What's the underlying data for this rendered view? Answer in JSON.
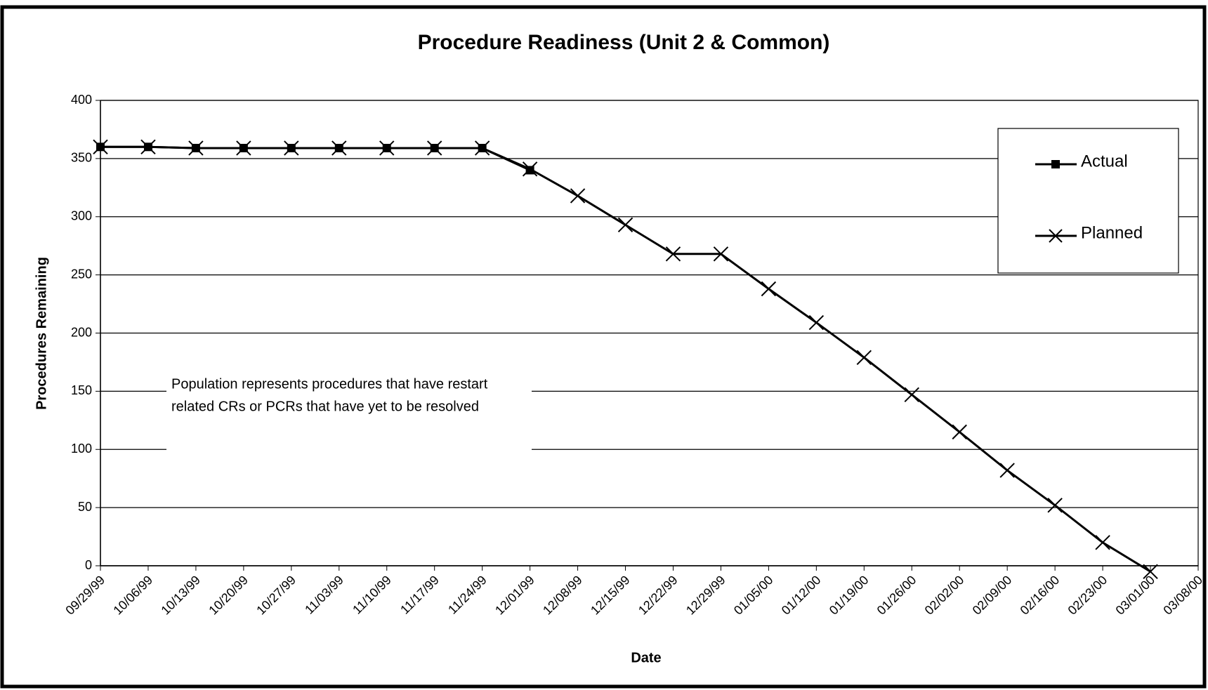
{
  "chart_data": {
    "type": "line",
    "title": "Procedure Readiness (Unit 2 & Common)",
    "x_label": "Date",
    "y_label": "Procedures Remaining",
    "categories": [
      "09/29/99",
      "10/06/99",
      "10/13/99",
      "10/20/99",
      "10/27/99",
      "11/03/99",
      "11/10/99",
      "11/17/99",
      "11/24/99",
      "12/01/99",
      "12/08/99",
      "12/15/99",
      "12/22/99",
      "12/29/99",
      "01/05/00",
      "01/12/00",
      "01/19/00",
      "01/26/00",
      "02/02/00",
      "02/09/00",
      "02/16/00",
      "02/23/00",
      "03/01/00",
      "03/08/00"
    ],
    "series": [
      {
        "name": "Actual",
        "color": "#000000",
        "marker": "square",
        "values": [
          360,
          360,
          359,
          359,
          359,
          359,
          359,
          359,
          359,
          340,
          null,
          null,
          null,
          null,
          null,
          null,
          null,
          null,
          null,
          null,
          null,
          null,
          null,
          null
        ]
      },
      {
        "name": "Planned",
        "color": "#000000",
        "marker": "x",
        "values": [
          360,
          360,
          359,
          359,
          359,
          359,
          359,
          359,
          359,
          341,
          318,
          293,
          268,
          268,
          238,
          209,
          179,
          147,
          115,
          82,
          52,
          20,
          -5,
          null
        ]
      }
    ],
    "ylim": [
      0,
      400
    ],
    "yticks": [
      0,
      50,
      100,
      150,
      200,
      250,
      300,
      350,
      400
    ],
    "grid": true,
    "legend": "upper right",
    "annotation": [
      "Population represents procedures that have restart",
      "related CRs or PCRs that have yet to be resolved"
    ]
  }
}
